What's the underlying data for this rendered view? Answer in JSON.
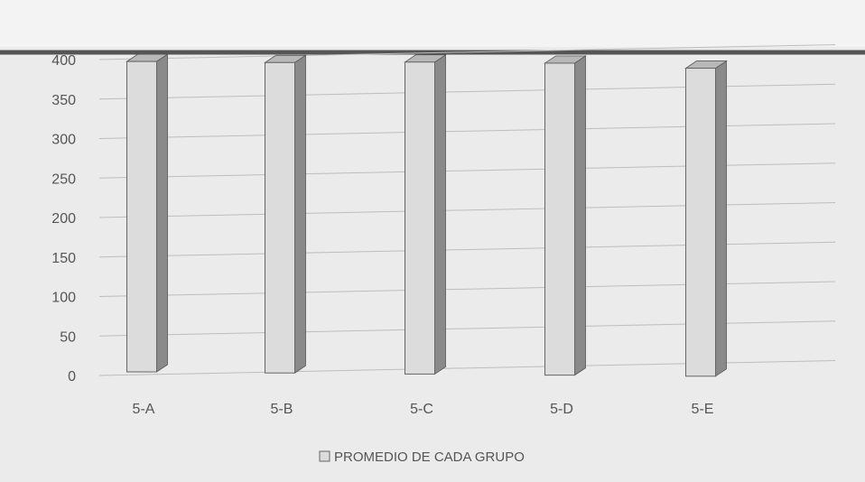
{
  "chart_data": {
    "type": "bar",
    "categories": [
      "5-A",
      "5-B",
      "5-C",
      "5-D",
      "5-E"
    ],
    "series": [
      {
        "name": "PROMEDIO DE CADA GRUPO",
        "values": [
          393,
          393,
          395,
          395,
          390
        ]
      }
    ],
    "ylim": [
      0,
      400
    ],
    "yticks": [
      0,
      50,
      100,
      150,
      200,
      250,
      300,
      350,
      400
    ],
    "ytick_labels": [
      "0",
      "50",
      "100",
      "150",
      "200",
      "250",
      "300",
      "350",
      "400"
    ],
    "grid": true,
    "legend_position": "bottom-center",
    "style": "3d-column",
    "colors": {
      "bar_front": "#dcdcdc",
      "bar_side": "#8a8a8a",
      "bar_top": "#b8b8b8",
      "gridline": "#bdbdbd",
      "top_border": "#555555",
      "background": "#e9e9e9"
    }
  }
}
